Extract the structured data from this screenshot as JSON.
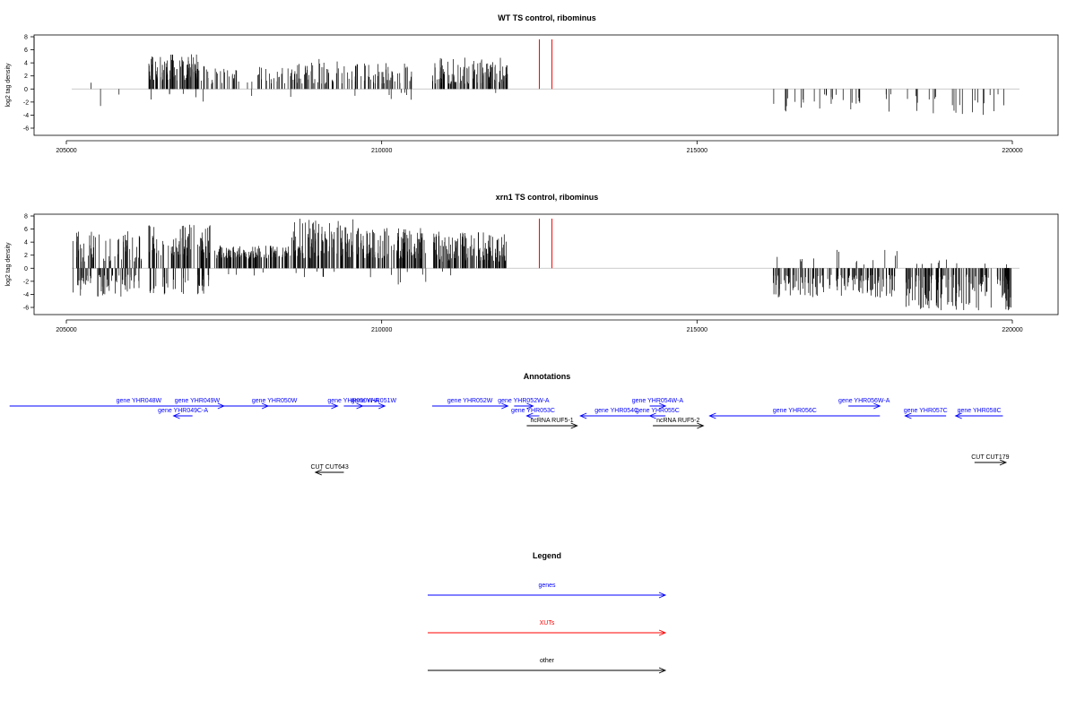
{
  "colors": {
    "genes": "#0000ff",
    "xuts": "#ff0000",
    "other": "#000000",
    "baseline": "#bbbbbb"
  },
  "chart_data": [
    {
      "type": "bar",
      "title": "WT TS control, ribominus",
      "xlabel": "",
      "ylabel": "log2 tag density",
      "xlim": [
        205000,
        220000
      ],
      "ylim": [
        -6,
        8
      ],
      "xticks": [
        "205000",
        "210000",
        "215000",
        "220000"
      ],
      "yticks": [
        "8",
        "6",
        "4",
        "2",
        "0",
        "-2",
        "-4",
        "-6"
      ],
      "xut_marks": [
        212500,
        212700
      ],
      "regions": [
        {
          "start": 205100,
          "end": 205600,
          "dens": 0.22,
          "pos": [
            0.6,
            3.4
          ],
          "neg": [
            0.5,
            3.2
          ],
          "split": 0.6
        },
        {
          "start": 205600,
          "end": 206100,
          "dens": 0.15,
          "pos": [
            0.5,
            2.6
          ],
          "neg": [
            0.5,
            1.8
          ],
          "split": 0.5
        },
        {
          "start": 206300,
          "end": 207250,
          "dens": 1.0,
          "pos": [
            1.2,
            5.4
          ],
          "neg": [
            0.5,
            2.0
          ],
          "split": 0.96
        },
        {
          "start": 207300,
          "end": 207750,
          "dens": 0.6,
          "pos": [
            0.8,
            3.2
          ],
          "neg": [
            0.5,
            1.5
          ],
          "split": 0.97
        },
        {
          "start": 207800,
          "end": 208650,
          "dens": 0.55,
          "pos": [
            0.8,
            3.4
          ],
          "neg": [
            0.5,
            1.5
          ],
          "split": 0.97
        },
        {
          "start": 208650,
          "end": 209500,
          "dens": 0.7,
          "pos": [
            0.8,
            4.6
          ],
          "neg": [
            0.5,
            1.5
          ],
          "split": 0.95
        },
        {
          "start": 209500,
          "end": 210500,
          "dens": 0.75,
          "pos": [
            0.8,
            4.2
          ],
          "neg": [
            0.5,
            2.6
          ],
          "split": 0.9
        },
        {
          "start": 210800,
          "end": 212000,
          "dens": 0.9,
          "pos": [
            0.8,
            4.8
          ],
          "neg": [
            0.5,
            1.2
          ],
          "split": 0.98
        },
        {
          "start": 216200,
          "end": 218100,
          "dens": 0.35,
          "pos": [
            0.5,
            1.0
          ],
          "neg": [
            0.8,
            3.6
          ],
          "split": 0.0
        },
        {
          "start": 218300,
          "end": 219900,
          "dens": 0.35,
          "pos": [
            0.5,
            1.0
          ],
          "neg": [
            0.8,
            4.2
          ],
          "split": 0.0
        }
      ]
    },
    {
      "type": "bar",
      "title": "xrn1 TS control, ribominus",
      "xlabel": "",
      "ylabel": "log2 tag density",
      "xlim": [
        205000,
        220000
      ],
      "ylim": [
        -6,
        8
      ],
      "xticks": [
        "205000",
        "210000",
        "215000",
        "220000"
      ],
      "yticks": [
        "8",
        "6",
        "4",
        "2",
        "0",
        "-2",
        "-4",
        "-6"
      ],
      "xut_marks": [
        212500,
        212700
      ],
      "regions": [
        {
          "start": 205100,
          "end": 206200,
          "dens": 1.0,
          "pos": [
            1.0,
            5.8
          ],
          "neg": [
            1.0,
            4.4
          ],
          "split": 0.6
        },
        {
          "start": 206300,
          "end": 207300,
          "dens": 1.0,
          "pos": [
            1.5,
            6.7
          ],
          "neg": [
            1.0,
            4.0
          ],
          "split": 0.7
        },
        {
          "start": 207350,
          "end": 208550,
          "dens": 1.0,
          "pos": [
            1.5,
            3.5
          ],
          "neg": [
            0.5,
            1.5
          ],
          "split": 0.97
        },
        {
          "start": 208550,
          "end": 209550,
          "dens": 1.0,
          "pos": [
            1.5,
            7.6
          ],
          "neg": [
            0.5,
            1.5
          ],
          "split": 0.97
        },
        {
          "start": 209600,
          "end": 210700,
          "dens": 1.0,
          "pos": [
            1.5,
            6.2
          ],
          "neg": [
            0.5,
            2.6
          ],
          "split": 0.92
        },
        {
          "start": 210800,
          "end": 212000,
          "dens": 1.0,
          "pos": [
            1.0,
            5.6
          ],
          "neg": [
            0.5,
            1.2
          ],
          "split": 0.98
        },
        {
          "start": 216200,
          "end": 218200,
          "dens": 0.8,
          "pos": [
            0.5,
            2.8
          ],
          "neg": [
            1.0,
            4.5
          ],
          "split": 0.12
        },
        {
          "start": 218300,
          "end": 220000,
          "dens": 0.9,
          "pos": [
            0.5,
            1.5
          ],
          "neg": [
            1.0,
            6.5
          ],
          "split": 0.05
        }
      ]
    }
  ],
  "annotations": {
    "title": "Annotations",
    "items": [
      {
        "label": "gene YHR048W",
        "cls": "genes",
        "start": 204100,
        "end": 208200,
        "dir": "right",
        "row": 0
      },
      {
        "label": "gene YHR049W",
        "cls": "genes",
        "start": 206650,
        "end": 207500,
        "dir": "right",
        "row": 0
      },
      {
        "label": "gene YHR049C-A",
        "cls": "genes",
        "start": 206700,
        "end": 207000,
        "dir": "left",
        "row": 1
      },
      {
        "label": "gene YHR050W",
        "cls": "genes",
        "start": 207300,
        "end": 209300,
        "dir": "right",
        "row": 0
      },
      {
        "label": "gene YHR050W-A",
        "cls": "genes",
        "start": 209400,
        "end": 209700,
        "dir": "right",
        "row": 0
      },
      {
        "label": "gene YHR051W",
        "cls": "genes",
        "start": 209700,
        "end": 210050,
        "dir": "right",
        "row": 0
      },
      {
        "label": "gene YHR052W",
        "cls": "genes",
        "start": 210800,
        "end": 212000,
        "dir": "right",
        "row": 0
      },
      {
        "label": "gene YHR052W-A",
        "cls": "genes",
        "start": 212100,
        "end": 212400,
        "dir": "right",
        "row": 0
      },
      {
        "label": "gene YHR053C",
        "cls": "genes",
        "start": 212300,
        "end": 212500,
        "dir": "left",
        "row": 1
      },
      {
        "label": "ncRNA RUF5-1",
        "cls": "other",
        "start": 212300,
        "end": 213100,
        "dir": "right",
        "row": 2
      },
      {
        "label": "gene YHR054C",
        "cls": "genes",
        "start": 213150,
        "end": 214300,
        "dir": "left",
        "row": 1
      },
      {
        "label": "gene YHR054W-A",
        "cls": "genes",
        "start": 214250,
        "end": 214500,
        "dir": "right",
        "row": 0
      },
      {
        "label": "gene YHR055C",
        "cls": "genes",
        "start": 214250,
        "end": 214500,
        "dir": "left",
        "row": 1
      },
      {
        "label": "ncRNA RUF5-2",
        "cls": "other",
        "start": 214300,
        "end": 215100,
        "dir": "right",
        "row": 2
      },
      {
        "label": "gene YHR056C",
        "cls": "genes",
        "start": 215200,
        "end": 217900,
        "dir": "left",
        "row": 1
      },
      {
        "label": "gene YHR056W-A",
        "cls": "genes",
        "start": 217400,
        "end": 217900,
        "dir": "right",
        "row": 0
      },
      {
        "label": "gene YHR057C",
        "cls": "genes",
        "start": 218300,
        "end": 218950,
        "dir": "left",
        "row": 1
      },
      {
        "label": "gene YHR058C",
        "cls": "genes",
        "start": 219100,
        "end": 219850,
        "dir": "left",
        "row": 1
      },
      {
        "label": "CUT CUT643",
        "cls": "other",
        "start": 208950,
        "end": 209400,
        "dir": "left",
        "row": 3
      },
      {
        "label": "CUT CUT179",
        "cls": "other",
        "start": 219400,
        "end": 219900,
        "dir": "right",
        "row": 4
      }
    ]
  },
  "legend": {
    "title": "Legend",
    "items": [
      {
        "label": "genes",
        "cls": "genes"
      },
      {
        "label": "XUTs",
        "cls": "xuts"
      },
      {
        "label": "other",
        "cls": "other"
      }
    ]
  }
}
